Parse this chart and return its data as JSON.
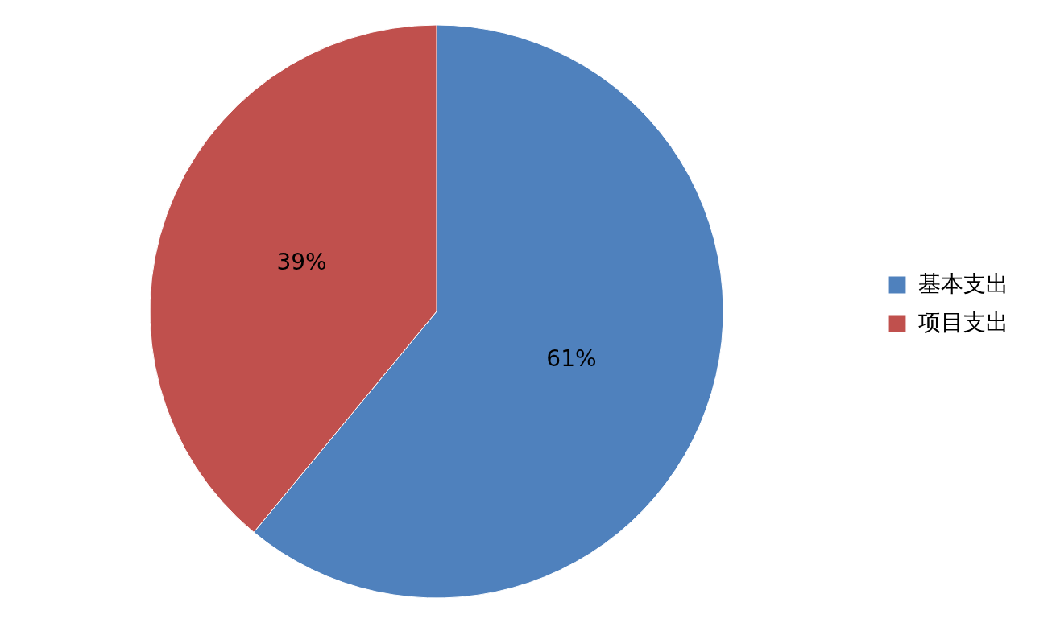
{
  "chart_data": {
    "type": "pie",
    "categories": [
      "基本支出",
      "项目支出"
    ],
    "values": [
      61,
      39
    ],
    "colors": [
      "#4f81bd",
      "#c0504d"
    ],
    "value_labels": [
      "61%",
      "39%"
    ],
    "legend": "right"
  }
}
